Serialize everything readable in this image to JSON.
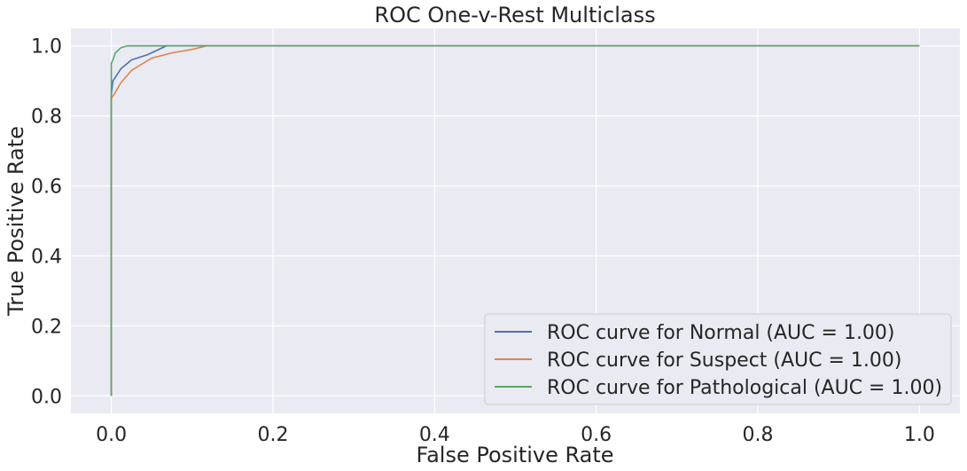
{
  "chart_data": {
    "type": "line",
    "title": "ROC One-v-Rest Multiclass",
    "xlabel": "False Positive Rate",
    "ylabel": "True Positive Rate",
    "xlim": [
      -0.05,
      1.05
    ],
    "ylim": [
      -0.05,
      1.05
    ],
    "xticks": [
      0.0,
      0.2,
      0.4,
      0.6,
      0.8,
      1.0
    ],
    "xtick_labels": [
      "0.0",
      "0.2",
      "0.4",
      "0.6",
      "0.8",
      "1.0"
    ],
    "yticks": [
      0.0,
      0.2,
      0.4,
      0.6,
      0.8,
      1.0
    ],
    "ytick_labels": [
      "0.0",
      "0.2",
      "0.4",
      "0.6",
      "0.8",
      "1.0"
    ],
    "grid": true,
    "legend_position": "lower-right",
    "series": [
      {
        "name": "ROC curve for Normal (AUC = 1.00)",
        "color": "#4c72b0",
        "x": [
          0.0,
          0.0,
          0.002,
          0.005,
          0.012,
          0.025,
          0.045,
          0.068,
          0.1,
          1.0
        ],
        "y": [
          0.0,
          0.86,
          0.9,
          0.91,
          0.935,
          0.96,
          0.975,
          1.0,
          1.0,
          1.0
        ]
      },
      {
        "name": "ROC curve for Suspect (AUC = 1.00)",
        "color": "#dd8452",
        "x": [
          0.0,
          0.0,
          0.003,
          0.012,
          0.025,
          0.05,
          0.075,
          0.1,
          0.118,
          1.0
        ],
        "y": [
          0.0,
          0.85,
          0.86,
          0.895,
          0.93,
          0.965,
          0.98,
          0.99,
          1.0,
          1.0
        ]
      },
      {
        "name": "ROC curve for Pathological (AUC = 1.00)",
        "color": "#55a868",
        "x": [
          0.0,
          0.0,
          0.002,
          0.005,
          0.012,
          0.02,
          1.0
        ],
        "y": [
          0.0,
          0.95,
          0.96,
          0.98,
          0.995,
          1.0,
          1.0
        ]
      }
    ]
  }
}
